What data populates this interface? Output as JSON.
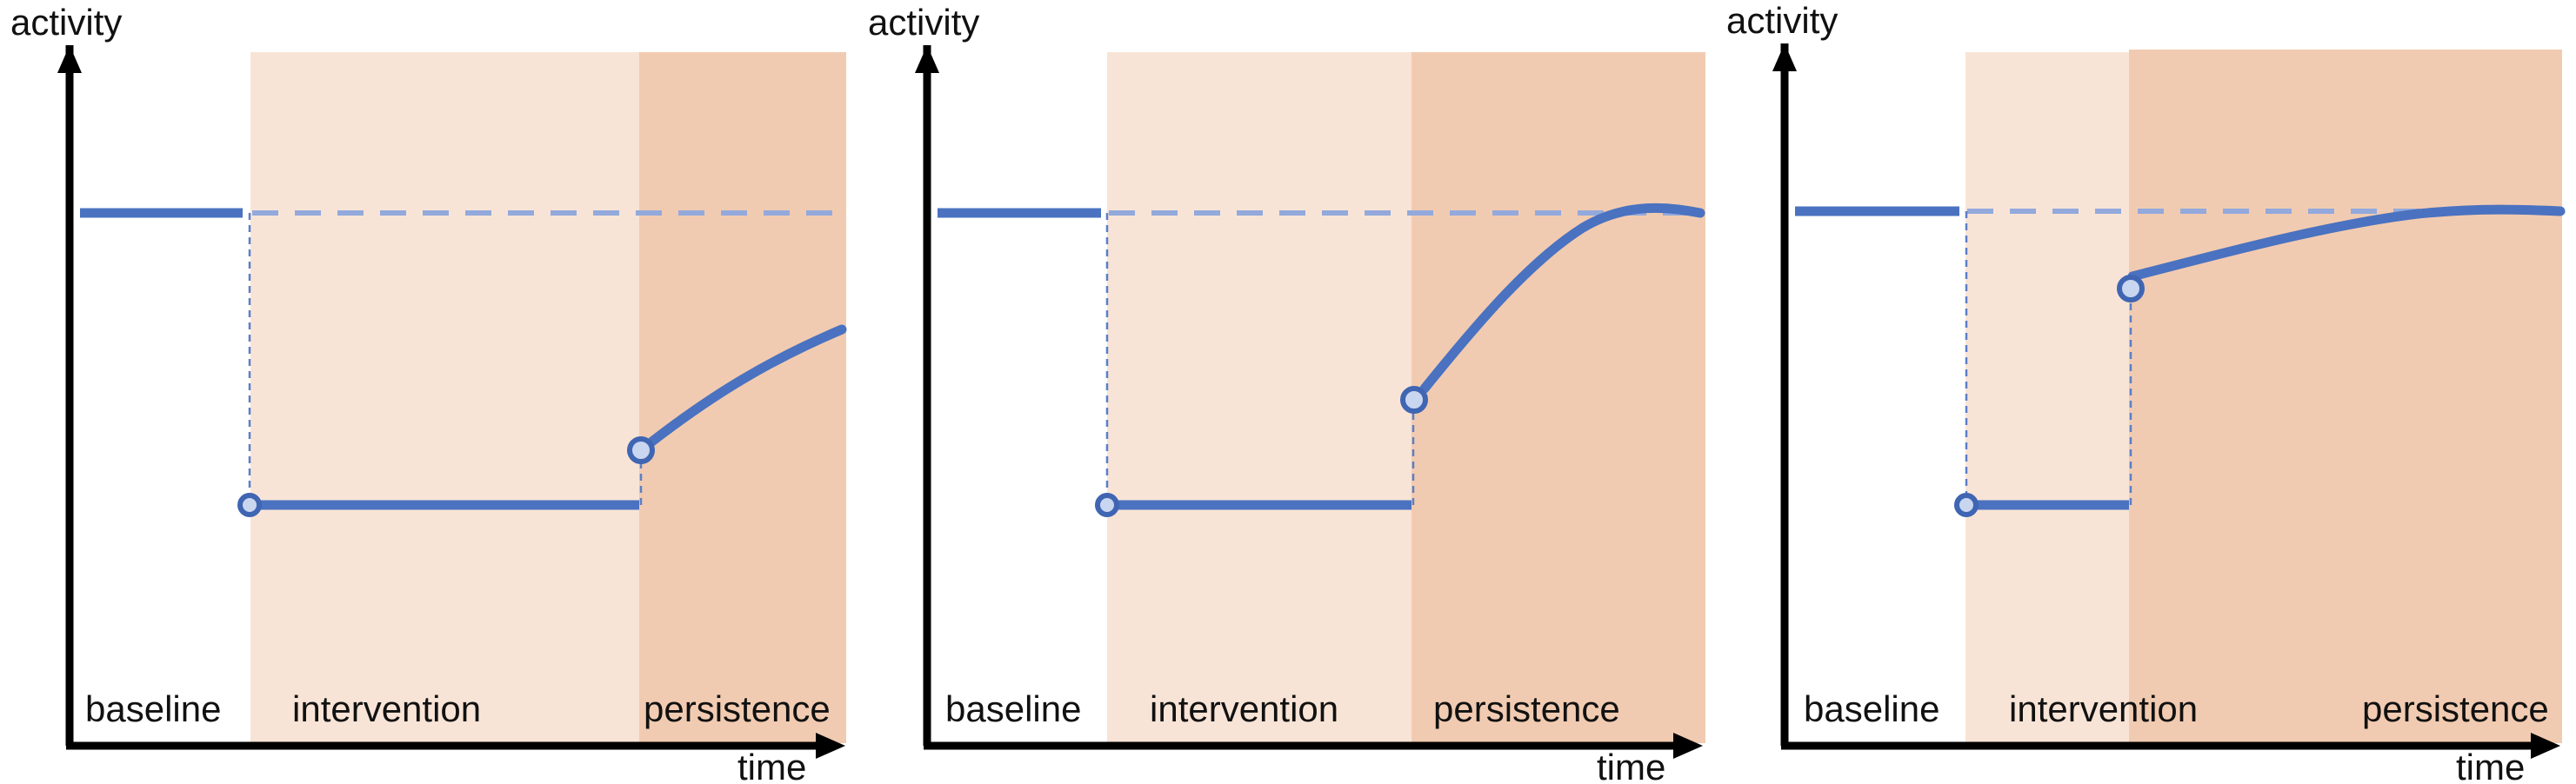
{
  "colors": {
    "intervention_bg": "#f8e4d6",
    "persistence_bg": "#f1cbb1",
    "line": "#4a72c0",
    "reference_line": "#93a9dc",
    "axis": "#000000"
  },
  "panels": [
    {
      "y_label": "activity",
      "x_label": "time",
      "phases": {
        "baseline": "baseline",
        "intervention": "intervention",
        "persistence": "persistence"
      },
      "persistence_level": "partial",
      "description_marks": {
        "reduced_level_fraction": 0.0,
        "jump_fraction": 0.2,
        "end_fraction": 0.6
      }
    },
    {
      "y_label": "activity",
      "x_label": "time",
      "phases": {
        "baseline": "baseline",
        "intervention": "intervention",
        "persistence": "persistence"
      },
      "persistence_level": "full",
      "description_marks": {
        "reduced_level_fraction": 0.0,
        "jump_fraction": 0.36,
        "end_fraction": 1.0
      }
    },
    {
      "y_label": "activity",
      "x_label": "time",
      "phases": {
        "baseline": "baseline",
        "intervention": "intervention",
        "persistence": "persistence"
      },
      "persistence_level": "full",
      "description_marks": {
        "reduced_level_fraction": 0.0,
        "jump_fraction": 0.74,
        "end_fraction": 1.0
      }
    }
  ]
}
